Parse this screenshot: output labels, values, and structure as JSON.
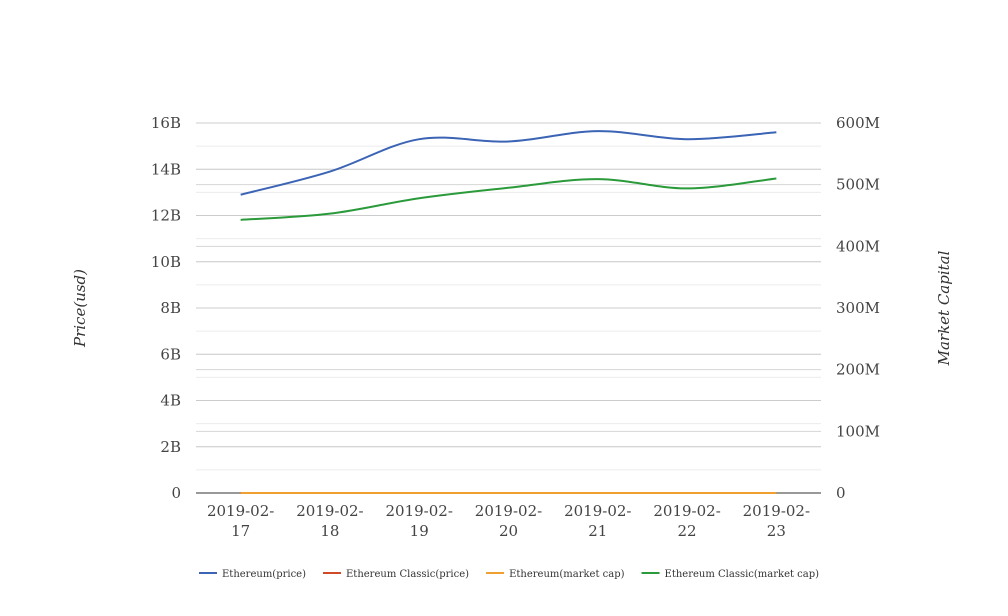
{
  "chart_data": {
    "type": "line",
    "x": [
      "2019-02-17",
      "2019-02-18",
      "2019-02-19",
      "2019-02-20",
      "2019-02-21",
      "2019-02-22",
      "2019-02-23"
    ],
    "x_tick_lines": [
      [
        "2019-02-",
        "17"
      ],
      [
        "2019-02-",
        "18"
      ],
      [
        "2019-02-",
        "19"
      ],
      [
        "2019-02-",
        "20"
      ],
      [
        "2019-02-",
        "21"
      ],
      [
        "2019-02-",
        "22"
      ],
      [
        "2019-02-",
        "23"
      ]
    ],
    "ylabel": "Price(usd)",
    "y2label": "Market Capital",
    "ylim": [
      0,
      16000000000
    ],
    "y2lim": [
      0,
      600000000
    ],
    "y_ticks": [
      {
        "value": 0,
        "label": "0"
      },
      {
        "value": 2000000000,
        "label": "2B"
      },
      {
        "value": 4000000000,
        "label": "4B"
      },
      {
        "value": 6000000000,
        "label": "6B"
      },
      {
        "value": 8000000000,
        "label": "8B"
      },
      {
        "value": 10000000000,
        "label": "10B"
      },
      {
        "value": 12000000000,
        "label": "12B"
      },
      {
        "value": 14000000000,
        "label": "14B"
      },
      {
        "value": 16000000000,
        "label": "16B"
      }
    ],
    "y2_ticks": [
      {
        "value": 0,
        "label": "0"
      },
      {
        "value": 100000000,
        "label": "100M"
      },
      {
        "value": 200000000,
        "label": "200M"
      },
      {
        "value": 300000000,
        "label": "300M"
      },
      {
        "value": 400000000,
        "label": "400M"
      },
      {
        "value": 500000000,
        "label": "500M"
      },
      {
        "value": 600000000,
        "label": "600M"
      }
    ],
    "grid": true,
    "legend_position": "bottom",
    "series": [
      {
        "name": "Ethereum(price)",
        "axis": "left",
        "color": "#3b64b5",
        "values": [
          12900000000,
          13900000000,
          15300000000,
          15200000000,
          15650000000,
          15300000000,
          15600000000
        ]
      },
      {
        "name": "Ethereum Classic(price)",
        "axis": "left",
        "color": "#d04a2a",
        "values": [
          4.5,
          4.3,
          4.4,
          4.4,
          4.5,
          4.4,
          4.5
        ]
      },
      {
        "name": "Ethereum(market cap)",
        "axis": "right",
        "color": "#f0a030",
        "values": [
          130,
          140,
          150,
          150,
          155,
          152,
          155
        ]
      },
      {
        "name": "Ethereum Classic(market cap)",
        "axis": "right",
        "color": "#2a9a3a",
        "values": [
          443000000,
          453000000,
          478000000,
          495000000,
          509000000,
          494000000,
          510000000
        ]
      }
    ]
  }
}
